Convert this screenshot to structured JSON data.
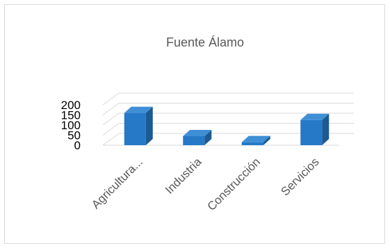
{
  "chart_data": {
    "type": "bar",
    "style": "3d-column",
    "title": "Fuente Álamo",
    "categories": [
      "Agricultura...",
      "Industria",
      "Construcción",
      "Servicios"
    ],
    "values": [
      160,
      45,
      15,
      125
    ],
    "ylim": [
      0,
      200
    ],
    "yticks": [
      0,
      50,
      100,
      150,
      200
    ],
    "grid": true,
    "legend": "none",
    "colors": {
      "bar_front": "#2579c7",
      "bar_side": "#1b5a93",
      "bar_top": "#3f8fd6",
      "grid": "#d9d9d9"
    }
  }
}
